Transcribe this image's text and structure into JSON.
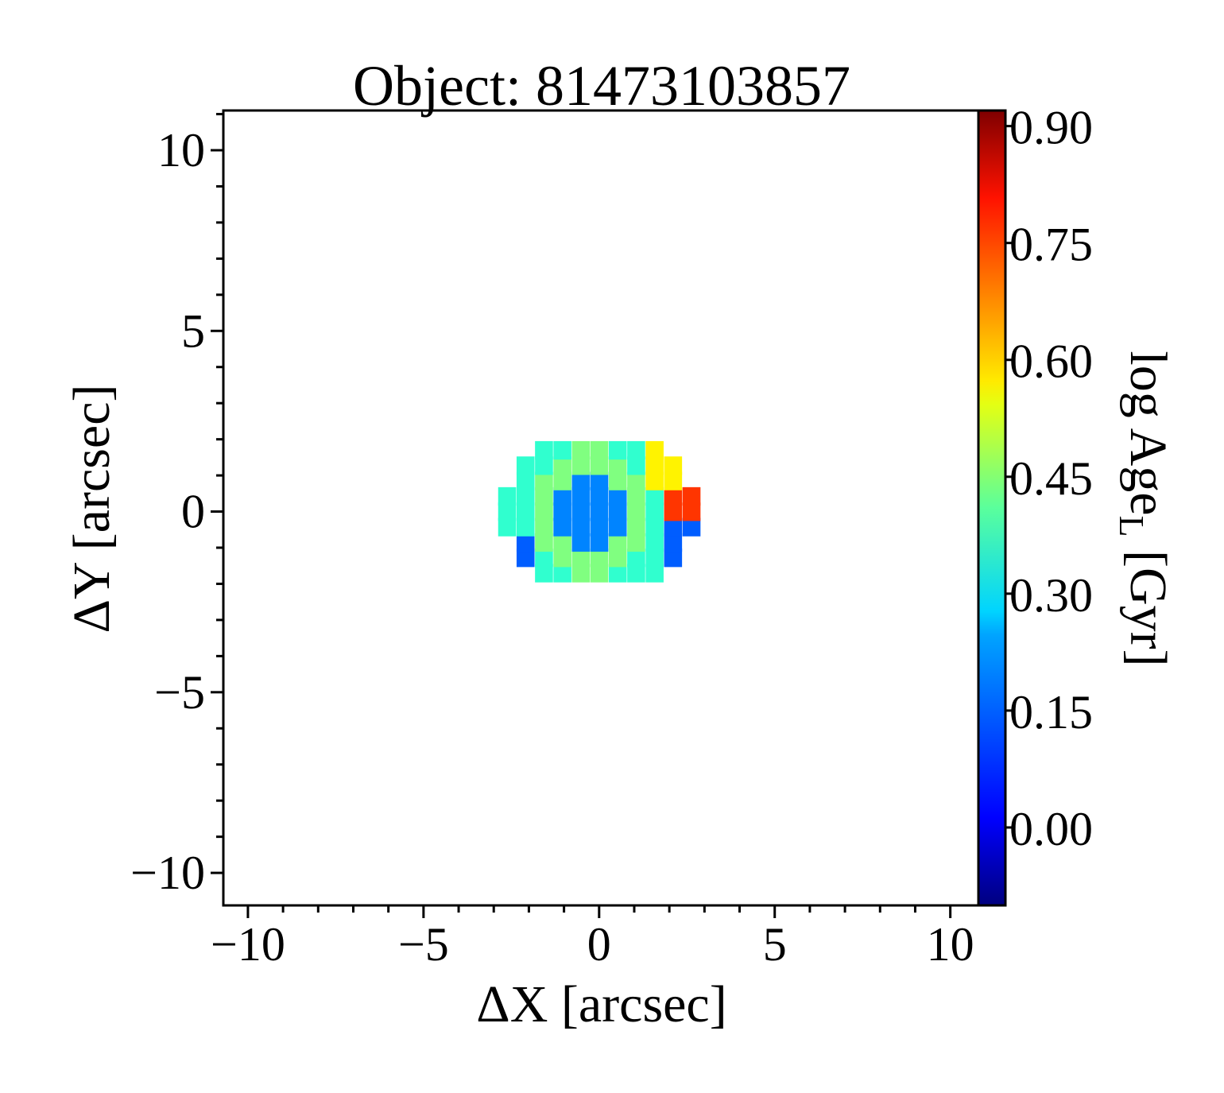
{
  "chart_data": {
    "type": "heatmap",
    "title": "Object: 81473103857",
    "xlabel": "ΔX [arcsec]",
    "ylabel": "ΔY [arcsec]",
    "colorbar_label": "log Age",
    "colorbar_label_subscript": "L",
    "colorbar_label_unit": " [Gyr]",
    "xlim": [
      -10.7,
      10.8
    ],
    "ylim": [
      -10.9,
      11.1
    ],
    "x_ticks": [
      -10,
      -5,
      0,
      5,
      10
    ],
    "x_tick_labels": [
      "−10",
      "−5",
      "0",
      "5",
      "10"
    ],
    "y_ticks": [
      10,
      5,
      0,
      -5,
      -10
    ],
    "y_tick_labels": [
      "10",
      "5",
      "0",
      "−5",
      "−10"
    ],
    "colorbar_range": [
      -0.1,
      0.92
    ],
    "colorbar_ticks": [
      0.9,
      0.75,
      0.6,
      0.45,
      0.3,
      0.15,
      0.0
    ],
    "colorbar_tick_labels": [
      "0.90",
      "0.75",
      "0.60",
      "0.45",
      "0.30",
      "0.15",
      "0.00"
    ],
    "colormap": "jet",
    "grid": false,
    "spaxel_size_arcsec": 0.5,
    "pixels": {
      "description": "spaxel centers in arcsec",
      "center_value": 0.16,
      "inner_ring_value": 0.41,
      "outer_ring_value": 0.33,
      "edge_low_value": 0.12,
      "yellow_patch_value": 0.55,
      "orange_patch_value": 0.74
    }
  }
}
